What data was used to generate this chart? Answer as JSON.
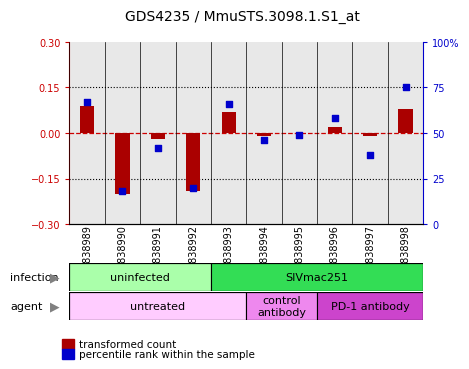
{
  "title": "GDS4235 / MmuSTS.3098.1.S1_at",
  "samples": [
    "GSM838989",
    "GSM838990",
    "GSM838991",
    "GSM838992",
    "GSM838993",
    "GSM838994",
    "GSM838995",
    "GSM838996",
    "GSM838997",
    "GSM838998"
  ],
  "transformed_count": [
    0.09,
    -0.2,
    -0.02,
    -0.19,
    0.07,
    -0.01,
    0.0,
    0.02,
    -0.01,
    0.08
  ],
  "percentile_rank": [
    67,
    18,
    42,
    20,
    66,
    46,
    49,
    58,
    38,
    75
  ],
  "ylim_left": [
    -0.3,
    0.3
  ],
  "ylim_right": [
    0,
    100
  ],
  "yticks_left": [
    -0.3,
    -0.15,
    0,
    0.15,
    0.3
  ],
  "yticks_right_vals": [
    0,
    25,
    50,
    75,
    100
  ],
  "yticks_right_labels": [
    "0",
    "25",
    "50",
    "75",
    "100%"
  ],
  "infection_groups": [
    {
      "label": "uninfected",
      "start": 0,
      "end": 4,
      "color": "#aaffaa"
    },
    {
      "label": "SIVmac251",
      "start": 4,
      "end": 10,
      "color": "#33dd55"
    }
  ],
  "agent_groups": [
    {
      "label": "untreated",
      "start": 0,
      "end": 5,
      "color": "#ffccff"
    },
    {
      "label": "control\nantibody",
      "start": 5,
      "end": 7,
      "color": "#ee88ee"
    },
    {
      "label": "PD-1 antibody",
      "start": 7,
      "end": 10,
      "color": "#cc44cc"
    }
  ],
  "bar_color": "#aa0000",
  "dot_color": "#0000cc",
  "zero_line_color": "#cc0000",
  "title_fontsize": 10,
  "tick_fontsize": 7,
  "annotation_fontsize": 8,
  "legend_fontsize": 7.5
}
